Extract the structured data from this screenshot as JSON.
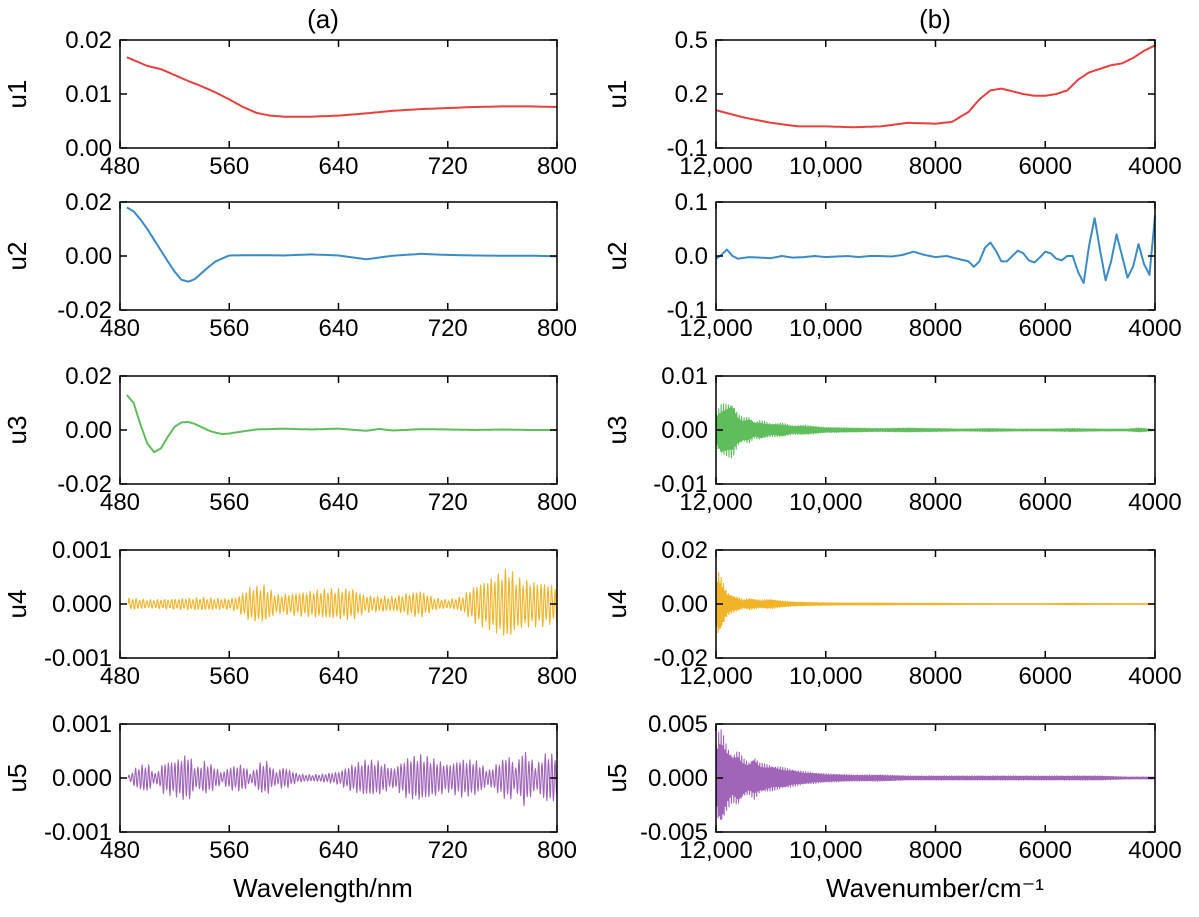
{
  "figure": {
    "column_titles": [
      "(a)",
      "(b)"
    ],
    "x_titles": [
      "Wavelength/nm",
      "Wavenumber/cm⁻¹"
    ]
  },
  "chart_data": [
    {
      "id": "a-u1",
      "type": "line",
      "column": "a",
      "row": 1,
      "color": "#e8403c",
      "ylabel": "u1",
      "xlim": [
        480,
        800
      ],
      "ylim": [
        0.0,
        0.02
      ],
      "yticks": [
        "0.00",
        "0.01",
        "0.02"
      ],
      "xticks": [
        "480",
        "560",
        "640",
        "720",
        "800"
      ],
      "series": [
        {
          "name": "u1",
          "x": [
            485,
            500,
            510,
            520,
            530,
            540,
            550,
            560,
            570,
            580,
            590,
            600,
            620,
            640,
            660,
            680,
            700,
            720,
            740,
            760,
            780,
            800
          ],
          "y": [
            0.0168,
            0.0152,
            0.0146,
            0.0135,
            0.0124,
            0.0114,
            0.0103,
            0.009,
            0.0076,
            0.0065,
            0.006,
            0.0058,
            0.0058,
            0.006,
            0.0064,
            0.0069,
            0.0072,
            0.0074,
            0.0076,
            0.0077,
            0.0077,
            0.0076
          ]
        }
      ]
    },
    {
      "id": "a-u2",
      "type": "line",
      "column": "a",
      "row": 2,
      "color": "#3b8bc8",
      "ylabel": "u2",
      "xlim": [
        480,
        800
      ],
      "ylim": [
        -0.02,
        0.02
      ],
      "yticks": [
        "-0.02",
        "0.00",
        "0.02"
      ],
      "xticks": [
        "480",
        "560",
        "640",
        "720",
        "800"
      ],
      "series": [
        {
          "name": "u2",
          "x": [
            485,
            490,
            495,
            500,
            505,
            510,
            515,
            520,
            525,
            530,
            535,
            540,
            545,
            550,
            560,
            580,
            600,
            620,
            640,
            660,
            680,
            700,
            720,
            740,
            760,
            780,
            800
          ],
          "y": [
            0.018,
            0.0165,
            0.0135,
            0.01,
            0.006,
            0.002,
            -0.002,
            -0.0058,
            -0.0088,
            -0.0095,
            -0.0085,
            -0.0062,
            -0.004,
            -0.002,
            0.0002,
            0.0003,
            0.0002,
            0.0006,
            0.0002,
            -0.0012,
            0.0001,
            0.0008,
            0.0004,
            0.0002,
            0.0001,
            0.0001,
            -0.0001
          ]
        }
      ]
    },
    {
      "id": "a-u3",
      "type": "line",
      "column": "a",
      "row": 3,
      "color": "#5fbe5b",
      "ylabel": "u3",
      "xlim": [
        480,
        800
      ],
      "ylim": [
        -0.02,
        0.02
      ],
      "yticks": [
        "-0.02",
        "0.00",
        "0.02"
      ],
      "xticks": [
        "480",
        "560",
        "640",
        "720",
        "800"
      ],
      "series": [
        {
          "name": "u3",
          "x": [
            485,
            490,
            495,
            500,
            505,
            510,
            515,
            520,
            525,
            530,
            535,
            540,
            545,
            550,
            555,
            560,
            570,
            580,
            600,
            620,
            640,
            660,
            670,
            680,
            700,
            720,
            740,
            760,
            780,
            800
          ],
          "y": [
            0.013,
            0.01,
            0.002,
            -0.005,
            -0.0082,
            -0.0068,
            -0.0025,
            0.0012,
            0.0028,
            0.003,
            0.0022,
            0.001,
            -0.0002,
            -0.001,
            -0.0015,
            -0.0013,
            -0.0005,
            0.0002,
            0.0005,
            0.0002,
            0.0005,
            -0.0003,
            0.0004,
            -0.0002,
            0.0003,
            0.0002,
            0.0,
            0.0002,
            0.0,
            0.0
          ]
        }
      ]
    },
    {
      "id": "a-u4",
      "type": "line",
      "column": "a",
      "row": 4,
      "color": "#f0b429",
      "ylabel": "u4",
      "xlim": [
        480,
        800
      ],
      "ylim": [
        -0.001,
        0.001
      ],
      "yticks": [
        "-0.001",
        "0.000",
        "0.001"
      ],
      "xticks": [
        "480",
        "560",
        "640",
        "720",
        "800"
      ],
      "series": [
        {
          "name": "u4",
          "kind": "oscillation",
          "xrange": [
            486,
            800
          ],
          "period": 2.6,
          "envelope_x": [
            486,
            500,
            520,
            540,
            560,
            566,
            575,
            585,
            595,
            610,
            630,
            650,
            660,
            680,
            700,
            710,
            720,
            730,
            740,
            750,
            760,
            765,
            770,
            780,
            790,
            800
          ],
          "envelope_amp": [
            0.00012,
            8e-05,
            0.0001,
            0.00012,
            0.0001,
            0.00014,
            0.00032,
            0.00036,
            0.00018,
            0.00022,
            0.00028,
            0.0003,
            0.00016,
            0.00014,
            0.00026,
            0.00012,
            8e-05,
            0.00014,
            0.00036,
            0.00048,
            0.00062,
            0.0007,
            0.0005,
            0.00044,
            0.00042,
            0.00034
          ]
        }
      ]
    },
    {
      "id": "a-u5",
      "type": "line",
      "column": "a",
      "row": 5,
      "color": "#a064b8",
      "ylabel": "u5",
      "xlim": [
        480,
        800
      ],
      "ylim": [
        -0.001,
        0.001
      ],
      "yticks": [
        "-0.001",
        "0.000",
        "0.001"
      ],
      "xticks": [
        "480",
        "560",
        "640",
        "720",
        "800"
      ],
      "series": [
        {
          "name": "u5",
          "kind": "oscillation",
          "xrange": [
            486,
            800
          ],
          "period": 2.4,
          "envelope_x": [
            486,
            492,
            500,
            506,
            512,
            520,
            530,
            536,
            542,
            548,
            555,
            560,
            570,
            576,
            582,
            588,
            594,
            600,
            610,
            620,
            630,
            640,
            650,
            660,
            670,
            680,
            690,
            700,
            710,
            720,
            730,
            740,
            750,
            760,
            765,
            770,
            775,
            780,
            785,
            790,
            795,
            800
          ],
          "envelope_amp": [
            4e-05,
            0.0002,
            0.00028,
            8e-05,
            0.0003,
            0.00034,
            0.00046,
            0.00018,
            0.00032,
            0.00024,
            0.0001,
            0.00022,
            0.00026,
            8e-05,
            0.00028,
            0.00032,
            0.00012,
            0.00022,
            8e-05,
            6e-05,
            8e-05,
            0.00012,
            0.00026,
            0.00034,
            0.00032,
            0.00018,
            0.00038,
            0.00044,
            0.00036,
            0.00026,
            0.00036,
            0.00034,
            0.00014,
            0.00036,
            0.00044,
            0.00022,
            0.00056,
            0.0004,
            0.00022,
            0.00044,
            0.00048,
            0.0004
          ]
        }
      ]
    },
    {
      "id": "b-u1",
      "type": "line",
      "column": "b",
      "row": 1,
      "color": "#e8403c",
      "ylabel": "u1",
      "xlim": [
        12000,
        4000
      ],
      "ylim": [
        -0.1,
        0.5
      ],
      "yticks": [
        "-0.1",
        "0.2",
        "0.5"
      ],
      "xticks": [
        "12,000",
        "10,000",
        "8000",
        "6000",
        "4000"
      ],
      "series": [
        {
          "name": "u1",
          "x": [
            12000,
            11500,
            11000,
            10500,
            10000,
            9500,
            9000,
            8500,
            8000,
            7700,
            7400,
            7200,
            7000,
            6800,
            6600,
            6400,
            6200,
            6000,
            5800,
            5600,
            5400,
            5200,
            5000,
            4800,
            4600,
            4400,
            4200,
            4000
          ],
          "y": [
            0.11,
            0.07,
            0.04,
            0.02,
            0.02,
            0.015,
            0.02,
            0.04,
            0.035,
            0.045,
            0.1,
            0.17,
            0.22,
            0.23,
            0.215,
            0.2,
            0.19,
            0.19,
            0.2,
            0.22,
            0.28,
            0.32,
            0.34,
            0.36,
            0.37,
            0.4,
            0.44,
            0.47
          ]
        }
      ]
    },
    {
      "id": "b-u2",
      "type": "line",
      "column": "b",
      "row": 2,
      "color": "#3b8bc8",
      "ylabel": "u2",
      "xlim": [
        12000,
        4000
      ],
      "ylim": [
        -0.1,
        0.1
      ],
      "yticks": [
        "-0.1",
        "0.0",
        "0.1"
      ],
      "xticks": [
        "12,000",
        "10,000",
        "8000",
        "6000",
        "4000"
      ],
      "series": [
        {
          "name": "u2",
          "x": [
            12000,
            11900,
            11800,
            11700,
            11600,
            11400,
            11200,
            11000,
            10800,
            10600,
            10400,
            10200,
            10000,
            9800,
            9600,
            9400,
            9200,
            9000,
            8800,
            8600,
            8400,
            8200,
            8000,
            7800,
            7600,
            7400,
            7300,
            7200,
            7100,
            7000,
            6900,
            6800,
            6700,
            6600,
            6500,
            6400,
            6300,
            6200,
            6100,
            6000,
            5900,
            5800,
            5700,
            5600,
            5500,
            5400,
            5300,
            5200,
            5100,
            5000,
            4900,
            4800,
            4700,
            4600,
            4500,
            4400,
            4300,
            4200,
            4100,
            4000
          ],
          "y": [
            -0.005,
            0.002,
            0.012,
            0.0,
            -0.005,
            -0.002,
            -0.003,
            -0.004,
            0.0,
            -0.003,
            -0.002,
            0.0,
            -0.002,
            -0.001,
            0.0,
            -0.002,
            0.0,
            0.0,
            -0.001,
            0.002,
            0.008,
            0.002,
            -0.002,
            0.0,
            -0.005,
            -0.01,
            -0.02,
            -0.01,
            0.015,
            0.025,
            0.01,
            -0.01,
            -0.01,
            0.0,
            0.01,
            0.005,
            -0.008,
            -0.012,
            -0.003,
            0.008,
            0.005,
            -0.005,
            -0.008,
            0.0,
            0.0,
            -0.03,
            -0.05,
            0.02,
            0.07,
            0.01,
            -0.045,
            -0.01,
            0.04,
            0.0,
            -0.04,
            -0.02,
            0.022,
            -0.015,
            -0.035,
            0.075
          ]
        }
      ]
    },
    {
      "id": "b-u3",
      "type": "line",
      "column": "b",
      "row": 3,
      "color": "#5fbe5b",
      "ylabel": "u3",
      "xlim": [
        12000,
        4000
      ],
      "ylim": [
        -0.01,
        0.01
      ],
      "yticks": [
        "-0.01",
        "0.00",
        "0.01"
      ],
      "xticks": [
        "12,000",
        "10,000",
        "8000",
        "6000",
        "4000"
      ],
      "series": [
        {
          "name": "u3",
          "kind": "oscillation",
          "xrange": [
            12000,
            4000
          ],
          "period": 22,
          "envelope_x": [
            12000,
            11900,
            11800,
            11700,
            11600,
            11500,
            11400,
            11300,
            11200,
            11000,
            10800,
            10600,
            10400,
            10000,
            9500,
            9000,
            8500,
            8000,
            7500,
            7000,
            6500,
            6000,
            5500,
            5000,
            4500,
            4300,
            4000
          ],
          "envelope_amp": [
            0.0032,
            0.0048,
            0.005,
            0.0052,
            0.003,
            0.0022,
            0.0025,
            0.0015,
            0.0018,
            0.0012,
            0.0013,
            0.0008,
            0.0009,
            0.0005,
            0.0004,
            0.0003,
            0.0004,
            0.0003,
            0.0002,
            0.0003,
            0.0002,
            0.0002,
            0.0003,
            0.0002,
            0.0002,
            0.0004,
            0.0001
          ]
        }
      ]
    },
    {
      "id": "b-u4",
      "type": "line",
      "column": "b",
      "row": 4,
      "color": "#f0b429",
      "ylabel": "u4",
      "xlim": [
        12000,
        4000
      ],
      "ylim": [
        -0.02,
        0.02
      ],
      "yticks": [
        "-0.02",
        "0.00",
        "0.02"
      ],
      "xticks": [
        "12,000",
        "10,000",
        "8000",
        "6000",
        "4000"
      ],
      "series": [
        {
          "name": "u4",
          "kind": "oscillation",
          "xrange": [
            12000,
            4000
          ],
          "period": 22,
          "envelope_x": [
            12000,
            11950,
            11900,
            11800,
            11700,
            11600,
            11500,
            11400,
            11200,
            11000,
            10800,
            10600,
            10400,
            10000,
            9500,
            9000,
            8500,
            8000,
            7000,
            6000,
            5500,
            5000,
            4500,
            4000
          ],
          "envelope_amp": [
            0.01,
            0.012,
            0.0095,
            0.0045,
            0.0032,
            0.0026,
            0.0016,
            0.0022,
            0.0015,
            0.0018,
            0.0012,
            0.0008,
            0.0007,
            0.0005,
            0.0004,
            0.0004,
            0.0003,
            0.0003,
            0.0002,
            0.0002,
            0.0003,
            0.0002,
            0.0002,
            0.0002
          ]
        }
      ]
    },
    {
      "id": "b-u5",
      "type": "line",
      "column": "b",
      "row": 5,
      "color": "#a064b8",
      "ylabel": "u5",
      "xlim": [
        12000,
        4000
      ],
      "ylim": [
        -0.005,
        0.005
      ],
      "yticks": [
        "-0.005",
        "0.000",
        "0.005"
      ],
      "xticks": [
        "12,000",
        "10,000",
        "8000",
        "6000",
        "4000"
      ],
      "series": [
        {
          "name": "u5",
          "kind": "oscillation",
          "xrange": [
            12000,
            4000
          ],
          "period": 22,
          "envelope_x": [
            12000,
            11950,
            11900,
            11800,
            11700,
            11600,
            11500,
            11400,
            11300,
            11200,
            11000,
            10800,
            10600,
            10400,
            10000,
            9500,
            9000,
            8500,
            8000,
            7500,
            7000,
            6500,
            6000,
            5500,
            5000,
            4500,
            4000
          ],
          "envelope_amp": [
            0.003,
            0.0043,
            0.0045,
            0.003,
            0.0022,
            0.0026,
            0.0018,
            0.0015,
            0.002,
            0.0014,
            0.0012,
            0.001,
            0.0008,
            0.0006,
            0.0004,
            0.0003,
            0.0003,
            0.0002,
            0.0002,
            0.0002,
            0.0002,
            0.0002,
            0.0002,
            0.0002,
            0.0002,
            0.0001,
            0.0001
          ]
        }
      ]
    }
  ]
}
